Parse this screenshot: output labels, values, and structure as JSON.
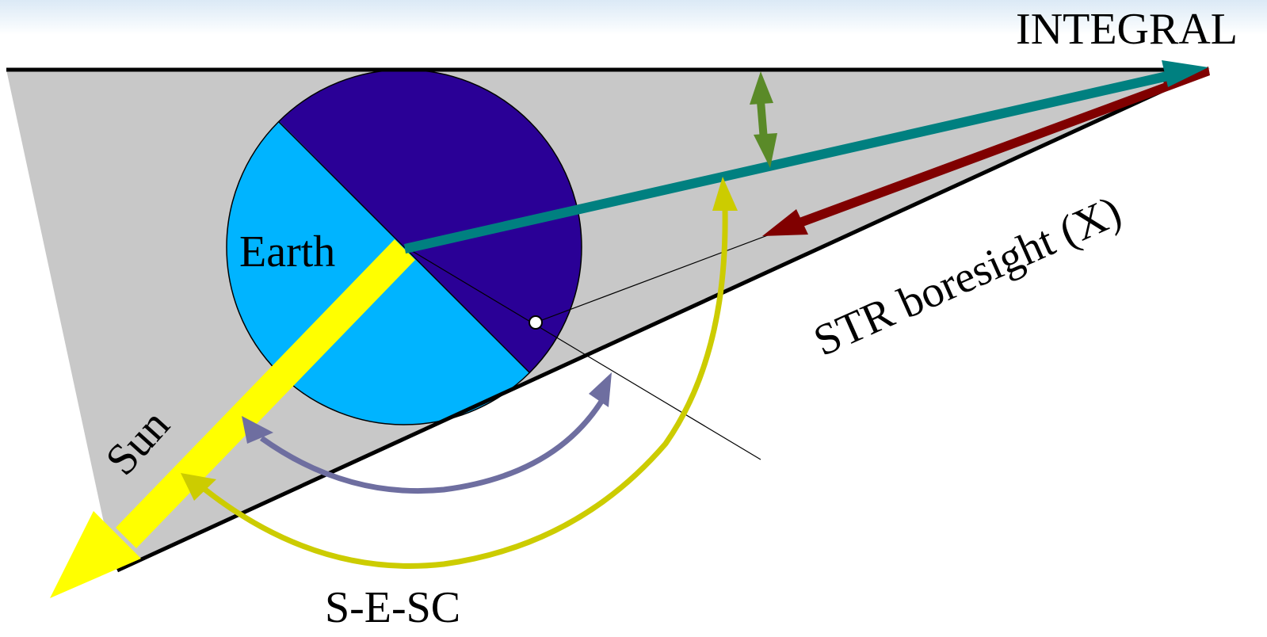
{
  "labels": {
    "integral": "INTEGRAL",
    "earth": "Earth",
    "sun": "Sun",
    "str_boresight": "STR boresight (X)",
    "s_e_sc": "S-E-SC"
  },
  "colors": {
    "background": "#ffffff",
    "shaded_plane": "#c8c8c8",
    "earth_day": "#00b4ff",
    "earth_night": "#2a0096",
    "sun_arrow": "#ffff00",
    "spacecraft_vector": "#008080",
    "str_boresight_vector": "#800000",
    "angle_arc_small": "#5a8a28",
    "angle_arc_mid": "#6e6ea0",
    "angle_arc_large": "#cccc00",
    "outline": "#000000"
  }
}
